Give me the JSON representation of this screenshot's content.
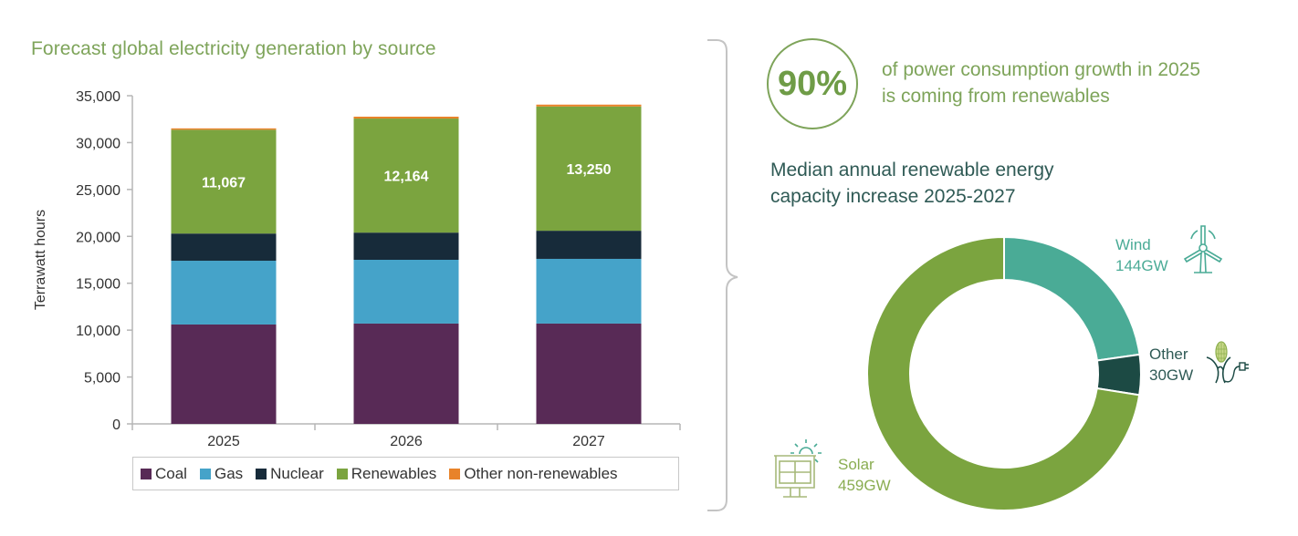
{
  "left_panel": {
    "title": "Forecast global electricity generation by source"
  },
  "right_panel": {
    "stat_value": "90%",
    "stat_text": "of power consumption growth in 2025 is coming from renewables",
    "donut_title": "Median annual renewable energy capacity increase 2025-2027",
    "labels": {
      "wind_name": "Wind",
      "wind_value": "144GW",
      "other_name": "Other",
      "other_value": "30GW",
      "solar_name": "Solar",
      "solar_value": "459GW"
    },
    "icons": [
      "wind-turbine-icon",
      "biomass-plug-icon",
      "solar-panel-icon"
    ]
  },
  "colors": {
    "coal": "#582a56",
    "gas": "#45a3c9",
    "nuclear": "#172b3a",
    "renewables": "#7ba43f",
    "other_nonrenewables": "#e8832a",
    "wind": "#4aab96",
    "other_renewable": "#1c4a44",
    "solar": "#7ba43f",
    "title_green": "#7ea45a",
    "title_teal": "#2f5a55"
  },
  "chart_data": [
    {
      "type": "bar",
      "stacked": true,
      "title": "Forecast global electricity generation by source",
      "xlabel": "",
      "ylabel": "Terrawatt hours",
      "ylim": [
        0,
        35000
      ],
      "yticks": [
        0,
        5000,
        10000,
        15000,
        20000,
        25000,
        30000,
        35000
      ],
      "ytick_labels": [
        "0",
        "5,000",
        "10,000",
        "15,000",
        "20,000",
        "25,000",
        "30,000",
        "35,000"
      ],
      "categories": [
        "2025",
        "2026",
        "2027"
      ],
      "series": [
        {
          "name": "Coal",
          "values": [
            10600,
            10700,
            10700
          ]
        },
        {
          "name": "Gas",
          "values": [
            6800,
            6800,
            6900
          ]
        },
        {
          "name": "Nuclear",
          "values": [
            2900,
            2900,
            3000
          ]
        },
        {
          "name": "Renewables",
          "values": [
            11067,
            12164,
            13250
          ],
          "data_labels": [
            "11,067",
            "12,164",
            "13,250"
          ]
        },
        {
          "name": "Other non-renewables",
          "values": [
            150,
            200,
            200
          ]
        }
      ],
      "legend": [
        "Coal",
        "Gas",
        "Nuclear",
        "Renewables",
        "Other non-renewables"
      ],
      "legend_position": "bottom",
      "grid": false
    },
    {
      "type": "pie",
      "donut": true,
      "title": "Median annual renewable energy capacity increase 2025-2027",
      "categories": [
        "Wind",
        "Other",
        "Solar"
      ],
      "values": [
        144,
        30,
        459
      ],
      "unit": "GW",
      "data_labels": [
        "144GW",
        "30GW",
        "459GW"
      ]
    }
  ]
}
